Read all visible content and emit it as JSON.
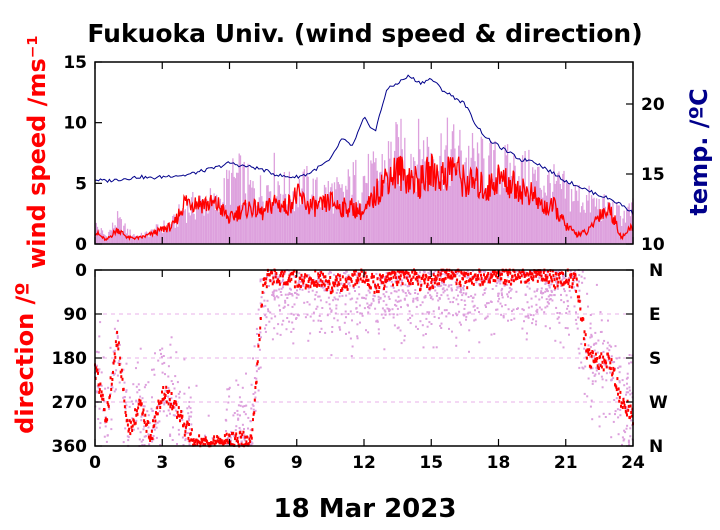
{
  "title": "Fukuoka Univ. (wind speed & direction)",
  "date_label": "18 Mar 2023",
  "colors": {
    "wind_mean": "#ff0000",
    "wind_gust": "#dda0dd",
    "temperature": "#00008b",
    "axis": "#000000"
  },
  "chart_data": [
    {
      "type": "line",
      "panel": "top",
      "xlim": [
        0,
        24
      ],
      "xticks": [
        "0",
        "3",
        "6",
        "9",
        "12",
        "15",
        "18",
        "21",
        "24"
      ],
      "ylabel": "wind speed /ms⁻¹",
      "ylim": [
        0,
        15
      ],
      "yticks": [
        "0",
        "5",
        "10",
        "15"
      ],
      "y2label": "temp. /ºC",
      "y2lim": [
        10,
        23
      ],
      "y2ticks": [
        "10",
        "15",
        "20"
      ],
      "series": [
        {
          "role": "gust",
          "x": [
            0,
            0.5,
            1,
            1.5,
            2,
            2.5,
            3,
            3.5,
            4,
            4.5,
            5,
            5.5,
            6,
            6.5,
            7,
            7.5,
            8,
            8.5,
            9,
            9.5,
            10,
            10.5,
            11,
            11.5,
            12,
            12.5,
            13,
            13.5,
            14,
            14.5,
            15,
            15.5,
            16,
            16.5,
            17,
            17.5,
            18,
            18.5,
            19,
            19.5,
            20,
            20.5,
            21,
            21.5,
            22,
            22.5,
            23,
            23.5,
            24
          ],
          "values": [
            2.0,
            0.8,
            2.5,
            1.2,
            0.8,
            1.2,
            1.8,
            2.2,
            3.8,
            4.0,
            4.5,
            4.0,
            6.5,
            7.0,
            5.5,
            5.5,
            7.0,
            5.5,
            5.5,
            6.0,
            5.0,
            5.5,
            5.0,
            6.5,
            7.0,
            7.0,
            8.5,
            9.5,
            9.5,
            9.5,
            9.5,
            9.5,
            9.5,
            9.0,
            8.5,
            8.0,
            8.0,
            7.5,
            7.5,
            7.0,
            6.5,
            6.0,
            5.5,
            5.0,
            4.5,
            4.0,
            3.5,
            3.0,
            3.5
          ]
        },
        {
          "role": "mean",
          "x": [
            0,
            0.5,
            1,
            1.5,
            2,
            2.5,
            3,
            3.5,
            4,
            4.5,
            5,
            5.5,
            6,
            6.5,
            7,
            7.5,
            8,
            8.5,
            9,
            9.5,
            10,
            10.5,
            11,
            11.5,
            12,
            12.5,
            13,
            13.5,
            14,
            14.5,
            15,
            15.5,
            16,
            16.5,
            17,
            17.5,
            18,
            18.5,
            19,
            19.5,
            20,
            20.5,
            21,
            21.5,
            22,
            22.5,
            23,
            23.5,
            24
          ],
          "values": [
            1.0,
            0.3,
            1.2,
            0.5,
            0.5,
            0.8,
            1.2,
            1.5,
            3.5,
            3.5,
            3.3,
            3.2,
            2.0,
            2.8,
            3.0,
            2.5,
            3.5,
            3.0,
            4.0,
            3.2,
            3.0,
            3.5,
            3.0,
            3.0,
            2.5,
            4.0,
            5.5,
            6.0,
            5.5,
            5.0,
            6.0,
            5.5,
            6.5,
            5.0,
            5.0,
            4.5,
            5.5,
            5.0,
            4.5,
            4.0,
            3.0,
            3.0,
            1.5,
            0.8,
            1.0,
            2.5,
            2.8,
            0.5,
            1.5
          ]
        },
        {
          "role": "temperature",
          "axis": "y2",
          "x": [
            0,
            0.5,
            1,
            1.5,
            2,
            2.5,
            3,
            3.5,
            4,
            4.5,
            5,
            5.5,
            6,
            6.5,
            7,
            7.5,
            8,
            8.5,
            9,
            9.5,
            10,
            10.5,
            11,
            11.5,
            12,
            12.5,
            13,
            13.5,
            14,
            14.5,
            15,
            15.5,
            16,
            16.5,
            17,
            17.5,
            18,
            18.5,
            19,
            19.5,
            20,
            20.5,
            21,
            21.5,
            22,
            22.5,
            23,
            23.5,
            24
          ],
          "values": [
            14.6,
            14.5,
            14.6,
            14.7,
            14.8,
            14.7,
            14.8,
            14.9,
            14.9,
            15.1,
            15.3,
            15.5,
            15.8,
            15.6,
            15.5,
            15.3,
            15.0,
            14.8,
            14.8,
            15.0,
            15.5,
            16.0,
            17.5,
            17.0,
            19.0,
            18.0,
            21.0,
            21.5,
            22.0,
            21.5,
            21.8,
            21.0,
            20.5,
            20.0,
            18.5,
            17.5,
            17.0,
            16.5,
            16.0,
            16.0,
            15.5,
            15.0,
            14.5,
            14.2,
            13.8,
            13.5,
            13.2,
            12.8,
            12.2
          ]
        }
      ]
    },
    {
      "type": "scatter",
      "panel": "bottom",
      "xlim": [
        0,
        24
      ],
      "xticks": [
        "0",
        "3",
        "6",
        "9",
        "12",
        "15",
        "18",
        "21",
        "24"
      ],
      "ylabel": "direction /º",
      "ylim": [
        0,
        360
      ],
      "yticks": [
        "0",
        "90",
        "180",
        "270",
        "360"
      ],
      "y2ticks": [
        "N",
        "E",
        "S",
        "W",
        "N"
      ],
      "grid": true,
      "series": [
        {
          "role": "mean",
          "x": [
            0,
            0.5,
            1,
            1.5,
            2,
            2.5,
            3,
            3.5,
            4,
            4.5,
            5,
            5.5,
            6,
            6.5,
            7,
            7.5,
            8,
            8.5,
            9,
            9.5,
            10,
            10.5,
            11,
            11.5,
            12,
            12.5,
            13,
            13.5,
            14,
            14.5,
            15,
            15.5,
            16,
            16.5,
            17,
            17.5,
            18,
            18.5,
            19,
            19.5,
            20,
            20.5,
            21,
            21.5,
            22,
            22.5,
            23,
            23.5,
            24
          ],
          "values": [
            200,
            300,
            140,
            330,
            280,
            340,
            250,
            270,
            320,
            355,
            360,
            355,
            350,
            345,
            355,
            20,
            10,
            15,
            20,
            25,
            15,
            30,
            25,
            20,
            15,
            30,
            20,
            15,
            10,
            25,
            20,
            15,
            10,
            20,
            15,
            10,
            12,
            15,
            10,
            8,
            5,
            20,
            10,
            30,
            180,
            185,
            190,
            270,
            300
          ]
        }
      ]
    }
  ]
}
